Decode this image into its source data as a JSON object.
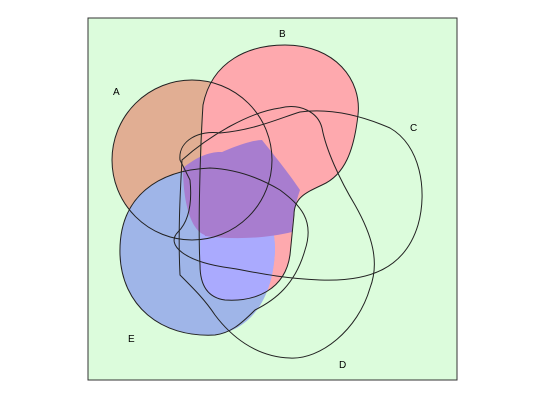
{
  "diagram": {
    "set_labels": {
      "a": "A",
      "b": "B",
      "c": "C",
      "d": "D",
      "e": "E"
    },
    "colors": {
      "universe_fill": "#dcfcdc",
      "universe_border": "#333333",
      "set_a_only_fill": "#e1ae93",
      "set_b_shaded_fill": "#fea9ae",
      "set_e_shaded_fill": "#9fb5e8",
      "b_and_e_fill": "#aaaafe",
      "a_b_e_overlap_fill": "#a87dcf",
      "outline": "#222222"
    }
  }
}
